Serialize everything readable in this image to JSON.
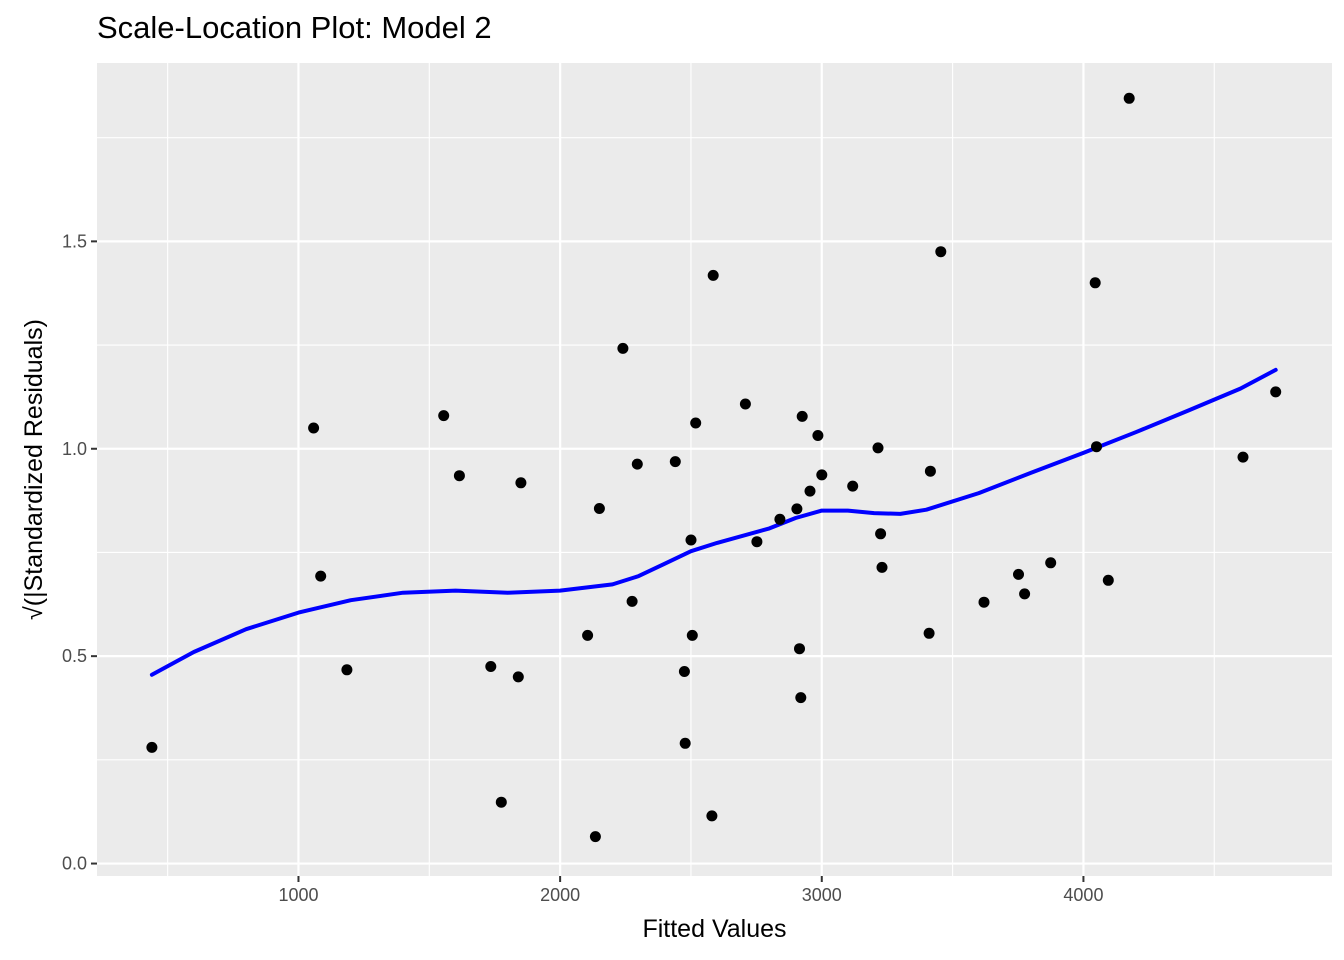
{
  "chart_data": {
    "type": "scatter",
    "title": "Scale-Location Plot: Model 2",
    "xlabel": "Fitted Values",
    "ylabel": "√(|Standardized Residuals)",
    "xlim": [
      230,
      4950
    ],
    "ylim": [
      -0.03,
      1.93
    ],
    "x_ticks": [
      1000,
      2000,
      3000,
      4000
    ],
    "x_tick_labels": [
      "1000",
      "2000",
      "3000",
      "4000"
    ],
    "x_minor_ticks": [
      500,
      1500,
      2500,
      3500,
      4500
    ],
    "y_ticks": [
      0.0,
      0.5,
      1.0,
      1.5
    ],
    "y_tick_labels": [
      "0.0",
      "0.5",
      "1.0",
      "1.5"
    ],
    "y_minor_ticks": [
      0.25,
      0.75,
      1.25,
      1.75
    ],
    "grid": true,
    "colors": {
      "panel": "#ebebeb",
      "grid": "#ffffff",
      "points": "#000000",
      "smooth_line": "#0000ff"
    },
    "series": [
      {
        "type": "scatter",
        "points": [
          [
            440,
            0.28
          ],
          [
            1058,
            1.05
          ],
          [
            1085,
            0.693
          ],
          [
            1185,
            0.467
          ],
          [
            1555,
            1.08
          ],
          [
            1615,
            0.935
          ],
          [
            1735,
            0.475
          ],
          [
            1775,
            0.148
          ],
          [
            1840,
            0.45
          ],
          [
            1850,
            0.918
          ],
          [
            2105,
            0.55
          ],
          [
            2135,
            0.065
          ],
          [
            2150,
            0.856
          ],
          [
            2240,
            1.242
          ],
          [
            2275,
            0.632
          ],
          [
            2295,
            0.963
          ],
          [
            2440,
            0.969
          ],
          [
            2475,
            0.463
          ],
          [
            2478,
            0.29
          ],
          [
            2500,
            0.78
          ],
          [
            2505,
            0.55
          ],
          [
            2518,
            1.062
          ],
          [
            2580,
            0.115
          ],
          [
            2585,
            1.418
          ],
          [
            2708,
            1.108
          ],
          [
            2752,
            0.776
          ],
          [
            2840,
            0.83
          ],
          [
            2905,
            0.855
          ],
          [
            2915,
            0.518
          ],
          [
            2920,
            0.4
          ],
          [
            2925,
            1.078
          ],
          [
            2955,
            0.898
          ],
          [
            2985,
            1.032
          ],
          [
            3000,
            0.937
          ],
          [
            3118,
            0.91
          ],
          [
            3215,
            1.002
          ],
          [
            3225,
            0.795
          ],
          [
            3230,
            0.714
          ],
          [
            3410,
            0.555
          ],
          [
            3415,
            0.946
          ],
          [
            3455,
            1.475
          ],
          [
            3620,
            0.63
          ],
          [
            3752,
            0.697
          ],
          [
            3775,
            0.65
          ],
          [
            3875,
            0.725
          ],
          [
            4045,
            1.4
          ],
          [
            4050,
            1.005
          ],
          [
            4095,
            0.683
          ],
          [
            4175,
            1.845
          ],
          [
            4610,
            0.98
          ],
          [
            4735,
            1.137
          ]
        ]
      },
      {
        "type": "line",
        "points": [
          [
            440,
            0.455
          ],
          [
            600,
            0.51
          ],
          [
            800,
            0.565
          ],
          [
            1000,
            0.605
          ],
          [
            1200,
            0.635
          ],
          [
            1400,
            0.653
          ],
          [
            1600,
            0.658
          ],
          [
            1800,
            0.653
          ],
          [
            2000,
            0.658
          ],
          [
            2200,
            0.673
          ],
          [
            2300,
            0.693
          ],
          [
            2400,
            0.723
          ],
          [
            2500,
            0.753
          ],
          [
            2600,
            0.773
          ],
          [
            2800,
            0.808
          ],
          [
            2900,
            0.833
          ],
          [
            3000,
            0.851
          ],
          [
            3100,
            0.851
          ],
          [
            3200,
            0.845
          ],
          [
            3300,
            0.843
          ],
          [
            3400,
            0.853
          ],
          [
            3600,
            0.893
          ],
          [
            3800,
            0.942
          ],
          [
            4000,
            0.99
          ],
          [
            4200,
            1.04
          ],
          [
            4400,
            1.092
          ],
          [
            4600,
            1.145
          ],
          [
            4735,
            1.19
          ]
        ]
      }
    ]
  }
}
